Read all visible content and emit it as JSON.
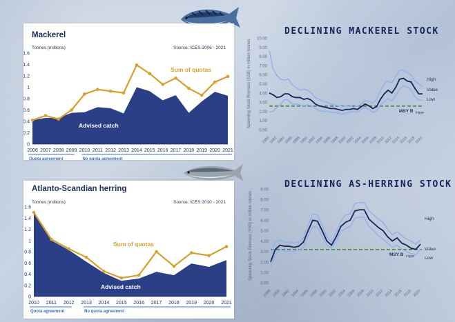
{
  "colors": {
    "navy": "#2a3f86",
    "gold": "#d8a02a",
    "light_blue": "#8fb0f0",
    "dark_line": "#15235a",
    "msy_green": "#3d8a3a",
    "bar_blue": "#3e6cc8"
  },
  "icons": {
    "mackerel": "mackerel-fish-icon",
    "herring": "herring-fish-icon"
  },
  "mackerel_panel": {
    "title": "Mackerel",
    "units": "Tonnes (millions)",
    "source": "Source: ICES 2006 - 2021",
    "label_quotas": "Sum of quotas",
    "label_catch": "Advised catch",
    "legend_quota": "Quota agreement",
    "legend_no_quota": "No quota agreement"
  },
  "herring_panel": {
    "title": "Atlanto-Scandian herring",
    "units": "Tonnes (millions)",
    "source": "Source: ICES 2010 - 2021",
    "label_quotas": "Sum of quotas",
    "label_catch": "Advised catch",
    "legend_quota": "Quota agreement",
    "legend_no_quota": "No quota agreement"
  },
  "mackerel_stock": {
    "title": "DECLINING MACKEREL STOCK",
    "ylabel": "Spawning Stock Biomass (SSB) in million tonnes",
    "label_high": "High",
    "label_value": "Value",
    "label_low": "Low",
    "label_msy": "MSY B",
    "label_msy_sub": "trigger"
  },
  "herring_stock": {
    "title": "DECLINING AS-HERRING STOCK",
    "ylabel": "Spawning Stock Biomass (SSB) in million tonnes",
    "label_high": "High",
    "label_value": "Value",
    "label_low": "Low",
    "label_msy": "MSY B",
    "label_msy_sub": "trigger"
  },
  "chart_data": [
    {
      "type": "area",
      "title": "Mackerel",
      "ylabel": "Tonnes (millions)",
      "categories": [
        "2006",
        "2007",
        "2008",
        "2009",
        "2010",
        "2011",
        "2012",
        "2013",
        "2014",
        "2015",
        "2016",
        "2017",
        "2018",
        "2019",
        "2020",
        "2021"
      ],
      "ylim": [
        0,
        1.6
      ],
      "yticks": [
        "0",
        "0.2",
        "0.4",
        "0.6",
        "0.8",
        "1",
        "1.2",
        "1.4",
        "1.6"
      ],
      "grid": false,
      "series": [
        {
          "name": "Advised catch",
          "kind": "area",
          "values": [
            0.42,
            0.46,
            0.46,
            0.55,
            0.56,
            0.65,
            0.63,
            0.54,
            1.0,
            0.93,
            0.77,
            0.86,
            0.55,
            0.75,
            0.92,
            0.85
          ]
        },
        {
          "name": "Sum of quotas",
          "kind": "line",
          "values": [
            0.42,
            0.5,
            0.44,
            0.6,
            0.88,
            0.96,
            0.93,
            0.9,
            1.39,
            1.24,
            1.05,
            1.16,
            0.98,
            0.86,
            1.09,
            1.19
          ]
        }
      ],
      "segments": [
        {
          "label": "Quota agreement",
          "from": "2006",
          "to": "2009"
        },
        {
          "label": "No quota agreement",
          "from": "2010",
          "to": "2021"
        }
      ]
    },
    {
      "type": "area",
      "title": "Atlanto-Scandian herring",
      "ylabel": "Tonnes (millions)",
      "categories": [
        "2010",
        "2011",
        "2012",
        "2013",
        "2014",
        "2015",
        "2016",
        "2017",
        "2018",
        "2019",
        "2020",
        "2021"
      ],
      "ylim": [
        0,
        1.6
      ],
      "yticks": [
        "0",
        "0.2",
        "0.4",
        "0.6",
        "0.8",
        "1",
        "1.2",
        "1.4",
        "1.6"
      ],
      "grid": false,
      "series": [
        {
          "name": "Advised catch",
          "kind": "area",
          "values": [
            1.48,
            1.0,
            0.83,
            0.62,
            0.42,
            0.28,
            0.32,
            0.44,
            0.38,
            0.59,
            0.53,
            0.65
          ]
        },
        {
          "name": "Sum of quotas",
          "kind": "line",
          "values": [
            1.5,
            1.02,
            0.85,
            0.7,
            0.45,
            0.33,
            0.38,
            0.8,
            0.54,
            0.78,
            0.73,
            0.89
          ]
        }
      ],
      "segments": [
        {
          "label": "Quota agreement",
          "from": "2010",
          "to": "2012"
        },
        {
          "label": "No quota agreement",
          "from": "2013",
          "to": "2021"
        }
      ]
    },
    {
      "type": "line",
      "title": "DECLINING MACKEREL STOCK",
      "ylabel": "Spawning Stock Biomass (SSB) in million tonnes",
      "x": [
        1980,
        1981,
        1982,
        1983,
        1984,
        1985,
        1986,
        1987,
        1988,
        1989,
        1990,
        1991,
        1992,
        1993,
        1994,
        1995,
        1996,
        1997,
        1998,
        1999,
        2000,
        2001,
        2002,
        2003,
        2004,
        2005,
        2006,
        2007,
        2008,
        2009,
        2010,
        2011,
        2012,
        2013,
        2014,
        2015,
        2016,
        2017,
        2018,
        2019,
        2020
      ],
      "xticks": [
        "1980",
        "1982",
        "1984",
        "1986",
        "1988",
        "1990",
        "1992",
        "1994",
        "1996",
        "1998",
        "2000",
        "2002",
        "2004",
        "2006",
        "2008",
        "2010",
        "2012",
        "2014",
        "2016",
        "2018",
        "2020"
      ],
      "ylim": [
        0,
        10
      ],
      "yticks": [
        "0.00",
        "1.00",
        "2.00",
        "3.00",
        "4.00",
        "5.00",
        "6.00",
        "7.00",
        "8.00",
        "9.00",
        "10.00"
      ],
      "grid": false,
      "msy_btrigger": 2.57,
      "series": [
        {
          "name": "High",
          "values": [
            8.6,
            6.6,
            5.9,
            5.5,
            5.4,
            5.5,
            4.9,
            4.6,
            4.3,
            4.4,
            4.3,
            4.0,
            3.5,
            3.3,
            3.1,
            3.0,
            2.8,
            2.7,
            2.6,
            2.5,
            2.6,
            2.5,
            2.7,
            2.5,
            2.8,
            3.2,
            3.1,
            2.9,
            3.3,
            4.2,
            5.0,
            5.3,
            5.1,
            5.8,
            6.5,
            6.5,
            6.2,
            6.0,
            5.3,
            5.0,
            4.7
          ]
        },
        {
          "name": "Value",
          "values": [
            4.0,
            3.8,
            3.5,
            3.6,
            3.9,
            3.9,
            3.6,
            3.5,
            3.5,
            3.3,
            3.4,
            3.2,
            2.8,
            2.6,
            2.5,
            2.4,
            2.3,
            2.3,
            2.2,
            2.1,
            2.2,
            2.2,
            2.3,
            2.2,
            2.5,
            2.8,
            2.6,
            2.3,
            2.5,
            3.3,
            3.9,
            4.3,
            4.0,
            4.6,
            5.5,
            5.6,
            5.3,
            5.2,
            4.5,
            3.9,
            3.9
          ]
        },
        {
          "name": "Low",
          "values": [
            1.9,
            2.0,
            2.4,
            2.8,
            3.3,
            3.2,
            2.8,
            2.8,
            2.7,
            2.6,
            2.7,
            2.6,
            2.3,
            2.1,
            2.0,
            2.0,
            1.9,
            1.9,
            1.8,
            1.7,
            1.8,
            1.9,
            2.0,
            1.9,
            2.2,
            2.4,
            2.2,
            1.9,
            2.0,
            2.7,
            3.0,
            3.4,
            3.1,
            3.7,
            4.4,
            4.8,
            4.6,
            4.4,
            3.6,
            3.2,
            3.2
          ]
        }
      ]
    },
    {
      "type": "line",
      "title": "DECLINING AS-HERRING STOCK",
      "ylabel": "Spawning Stock Biomass (SSB) in million tonnes",
      "x": [
        1988,
        1989,
        1990,
        1991,
        1992,
        1993,
        1994,
        1995,
        1996,
        1997,
        1998,
        1999,
        2000,
        2001,
        2002,
        2003,
        2004,
        2005,
        2006,
        2007,
        2008,
        2009,
        2010,
        2011,
        2012,
        2013,
        2014,
        2015,
        2016,
        2017,
        2018,
        2019,
        2020
      ],
      "xticks": [
        "1988",
        "1990",
        "1992",
        "1994",
        "1996",
        "1998",
        "2000",
        "2002",
        "2004",
        "2006",
        "2008",
        "2010",
        "2012",
        "2014",
        "2016",
        "2018",
        "2020"
      ],
      "ylim": [
        0,
        9
      ],
      "yticks": [
        "0.00",
        "1.00",
        "2.00",
        "3.00",
        "4.00",
        "5.00",
        "6.00",
        "7.00",
        "8.00",
        "9.00"
      ],
      "grid": false,
      "msy_btrigger": 3.18,
      "series": [
        {
          "name": "High",
          "values": [
            2.6,
            3.9,
            4.1,
            3.9,
            3.9,
            3.8,
            3.9,
            4.3,
            5.5,
            6.6,
            6.5,
            5.5,
            4.4,
            3.9,
            4.8,
            5.9,
            6.5,
            6.6,
            7.6,
            7.7,
            7.7,
            6.9,
            6.5,
            6.1,
            5.8,
            5.1,
            4.6,
            4.9,
            4.5,
            4.2,
            4.0,
            3.7,
            4.1
          ]
        },
        {
          "name": "Value",
          "values": [
            2.0,
            3.2,
            3.6,
            3.5,
            3.5,
            3.4,
            3.5,
            3.9,
            5.0,
            6.0,
            5.9,
            5.0,
            4.0,
            3.6,
            4.4,
            5.4,
            5.8,
            6.0,
            6.9,
            7.0,
            7.0,
            6.1,
            5.7,
            5.3,
            5.0,
            4.4,
            4.0,
            4.3,
            3.8,
            3.6,
            3.3,
            3.2,
            3.7
          ]
        },
        {
          "name": "Low",
          "values": [
            1.5,
            2.7,
            3.1,
            3.0,
            3.0,
            3.0,
            3.1,
            3.4,
            4.5,
            5.4,
            5.3,
            4.5,
            3.6,
            3.3,
            4.0,
            4.9,
            5.2,
            5.4,
            6.2,
            6.3,
            6.3,
            5.4,
            5.0,
            4.5,
            4.2,
            3.8,
            3.4,
            3.6,
            3.2,
            3.0,
            2.8,
            2.7,
            3.2
          ]
        }
      ]
    }
  ]
}
